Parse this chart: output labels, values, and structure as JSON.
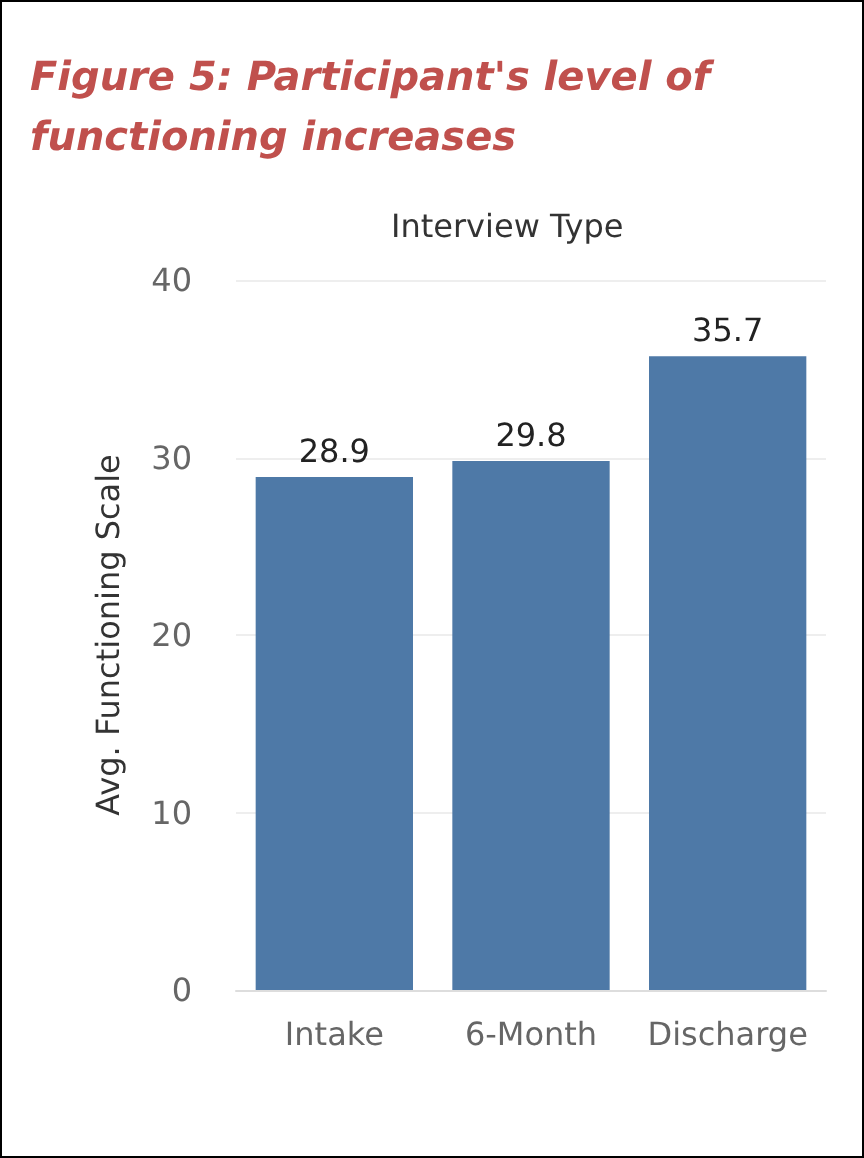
{
  "chart_data": {
    "type": "bar",
    "title": "Figure 5: Participant's level of functioning increases",
    "xlabel": "Interview Type",
    "ylabel": "Avg. Functioning Scale",
    "categories": [
      "Intake",
      "6-Month",
      "Discharge"
    ],
    "values": [
      28.9,
      29.8,
      35.7
    ],
    "color": "#4e79a7",
    "ylim": [
      0,
      40
    ],
    "yticks": [
      0,
      10,
      20,
      30,
      40
    ],
    "grid": "y",
    "data_labels": true
  }
}
